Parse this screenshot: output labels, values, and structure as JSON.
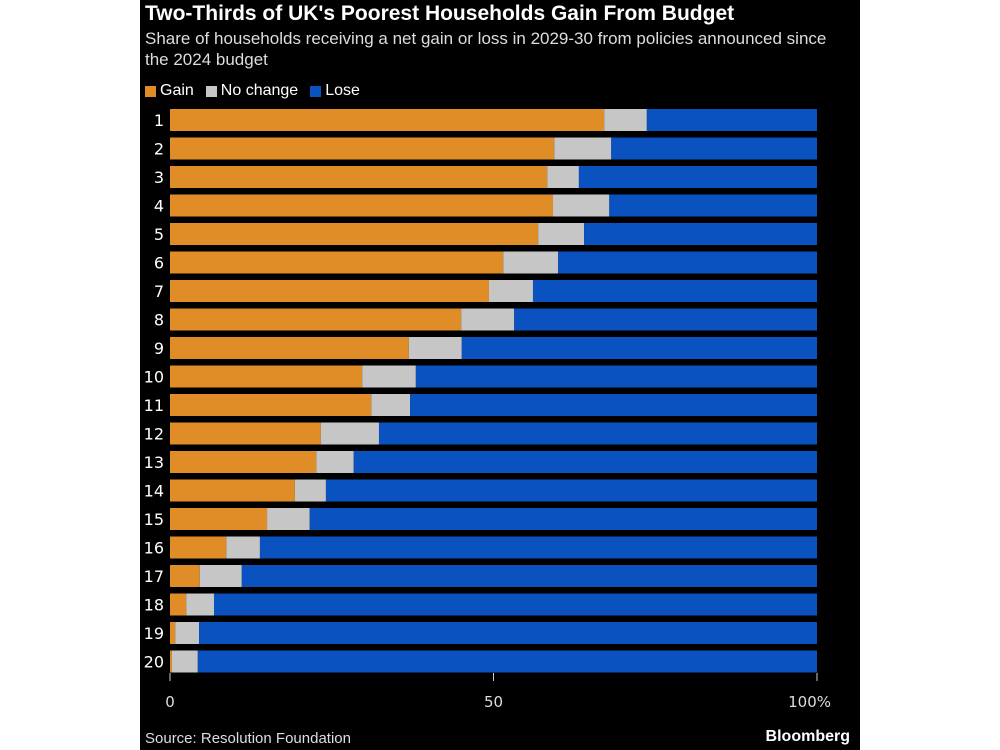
{
  "chart_data": {
    "type": "bar",
    "orientation": "horizontal",
    "stacked": true,
    "title": "Two-Thirds of UK's Poorest Households Gain From Budget",
    "subtitle": "Share of households receiving a net gain or loss in 2029-30 from policies announced since the 2024 budget",
    "categories": [
      "1",
      "2",
      "3",
      "4",
      "5",
      "6",
      "7",
      "8",
      "9",
      "10",
      "11",
      "12",
      "13",
      "14",
      "15",
      "16",
      "17",
      "18",
      "19",
      "20"
    ],
    "series": [
      {
        "name": "Gain",
        "color": "#e08c27",
        "values": [
          67.1,
          59.4,
          58.3,
          59.2,
          56.9,
          51.5,
          49.3,
          45.0,
          36.9,
          29.7,
          31.1,
          23.3,
          22.6,
          19.3,
          15.0,
          8.7,
          4.6,
          2.5,
          0.8,
          0.3
        ]
      },
      {
        "name": "No change",
        "color": "#c6c6c6",
        "values": [
          6.6,
          8.8,
          4.9,
          8.7,
          7.1,
          8.5,
          6.8,
          8.2,
          8.2,
          8.3,
          6.0,
          9.0,
          5.8,
          4.8,
          6.6,
          5.2,
          6.5,
          4.3,
          3.7,
          4.0
        ]
      },
      {
        "name": "Lose",
        "color": "#0a52c0",
        "values": [
          26.3,
          31.8,
          36.8,
          32.1,
          36.0,
          40.0,
          43.9,
          46.8,
          54.9,
          62.0,
          62.9,
          67.7,
          71.6,
          75.9,
          78.4,
          86.1,
          88.9,
          93.2,
          95.5,
          95.7
        ]
      }
    ],
    "xlim": [
      0,
      100
    ],
    "x_ticks": [
      "0",
      "50",
      "100%"
    ],
    "legend_position": "top-left",
    "grid": false,
    "source": "Source: Resolution Foundation",
    "brand": "Bloomberg"
  }
}
